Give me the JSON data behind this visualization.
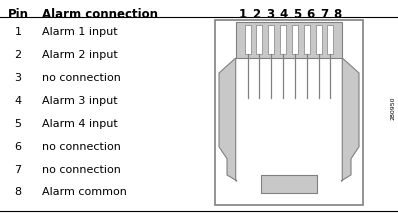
{
  "title_col1": "Pin",
  "title_col2": "Alarm connection",
  "pin_numbers": [
    "1",
    "2",
    "3",
    "4",
    "5",
    "6",
    "7",
    "8"
  ],
  "pins": [
    1,
    2,
    3,
    4,
    5,
    6,
    7,
    8
  ],
  "connections": [
    "Alarm 1 input",
    "Alarm 2 input",
    "no connection",
    "Alarm 3 input",
    "Alarm 4 input",
    "no connection",
    "no connection",
    "Alarm common"
  ],
  "bg_color": "#ffffff",
  "text_color": "#000000",
  "connector_color": "#c8c8c8",
  "connector_outline": "#808080",
  "watermark": "280950",
  "font_size_header": 8.5,
  "font_size_body": 8,
  "font_size_pin_header": 8.5,
  "font_size_watermark": 4.5
}
